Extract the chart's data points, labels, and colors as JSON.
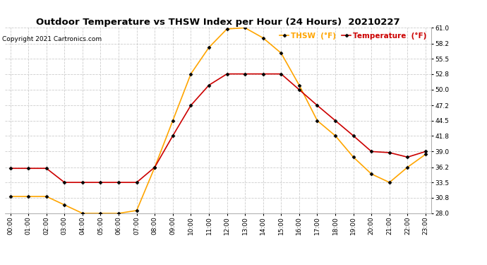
{
  "title": "Outdoor Temperature vs THSW Index per Hour (24 Hours)  20210227",
  "copyright": "Copyright 2021 Cartronics.com",
  "hours": [
    "00:00",
    "01:00",
    "02:00",
    "03:00",
    "04:00",
    "05:00",
    "06:00",
    "07:00",
    "08:00",
    "09:00",
    "10:00",
    "11:00",
    "12:00",
    "13:00",
    "14:00",
    "15:00",
    "16:00",
    "17:00",
    "18:00",
    "19:00",
    "20:00",
    "21:00",
    "22:00",
    "23:00"
  ],
  "temperature": [
    36.0,
    36.0,
    36.0,
    33.5,
    33.5,
    33.5,
    33.5,
    33.5,
    36.2,
    41.8,
    47.2,
    50.8,
    52.8,
    52.8,
    52.8,
    52.8,
    50.0,
    47.2,
    44.5,
    41.8,
    39.0,
    38.8,
    38.0,
    39.0
  ],
  "thsw": [
    31.0,
    31.0,
    31.0,
    29.5,
    28.0,
    28.0,
    28.0,
    28.5,
    36.2,
    44.5,
    52.8,
    57.5,
    60.8,
    61.0,
    59.2,
    56.5,
    50.8,
    44.5,
    41.8,
    38.0,
    35.0,
    33.5,
    36.2,
    38.5
  ],
  "thsw_color": "#FFA500",
  "temp_color": "#CC0000",
  "marker_color": "#000000",
  "ylim": [
    28.0,
    61.0
  ],
  "yticks": [
    28.0,
    30.8,
    33.5,
    36.2,
    39.0,
    41.8,
    44.5,
    47.2,
    50.0,
    52.8,
    55.5,
    58.2,
    61.0
  ],
  "background_color": "#ffffff",
  "grid_color": "#cccccc",
  "title_fontsize": 9.5,
  "copyright_fontsize": 6.5,
  "tick_fontsize": 6.5,
  "legend_fontsize": 7.5,
  "legend_thsw": "THSW  (°F)",
  "legend_temp": "Temperature  (°F)"
}
